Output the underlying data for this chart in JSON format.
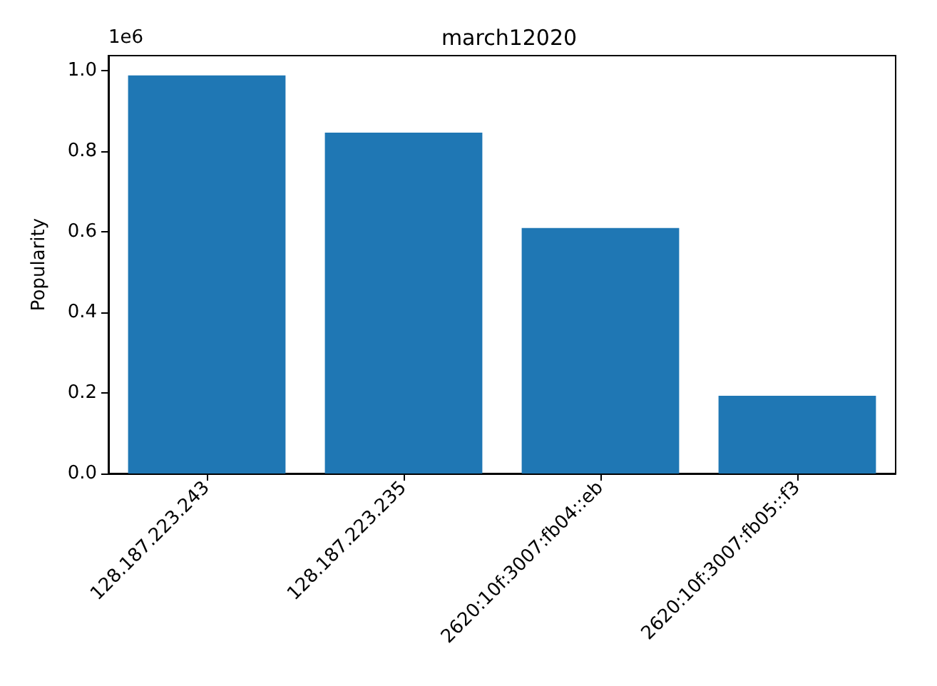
{
  "chart_data": {
    "type": "bar",
    "title": "march12020",
    "ylabel": "Popularity",
    "categories": [
      "128.187.223.243",
      "128.187.223.235",
      "2620:10f:3007:fb04::eb",
      "2620:10f:3007:fb05::f3"
    ],
    "values": [
      0.988,
      0.846,
      0.609,
      0.193
    ],
    "color": "#1f77b4",
    "ylim": [
      0,
      1.037
    ],
    "yticks": [
      {
        "value": 0,
        "label": "0.0"
      },
      0.2,
      0.4,
      0.6,
      0.8,
      {
        "value": 1,
        "label": "1.0"
      }
    ],
    "annotations": [
      "1e6"
    ]
  }
}
